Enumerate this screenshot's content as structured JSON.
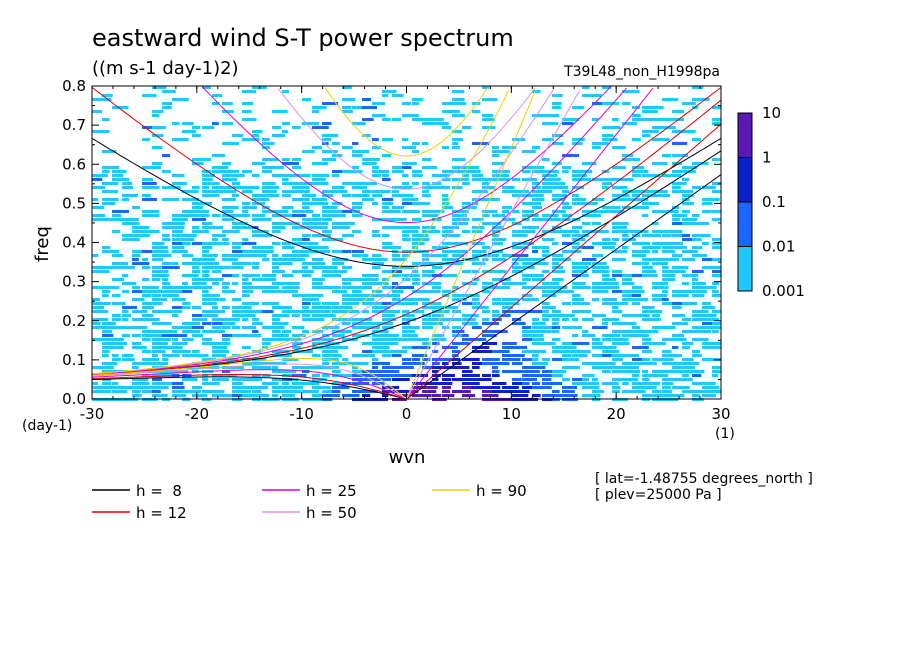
{
  "header": {
    "title": "eastward wind S-T power spectrum",
    "units": "((m s-1 day-1)2)",
    "experiment": "T39L48_non_H1998pa"
  },
  "info": {
    "lat": "[ lat=-1.48755 degrees_north ]",
    "plev": "[ plev=25000 Pa ]"
  },
  "chart_data": {
    "type": "heatmap",
    "title": "eastward wind S-T power spectrum",
    "units_label": "((m s-1 day-1)2)",
    "xlabel": "wvn",
    "ylabel": "freq",
    "x_unit_label": "(1)",
    "y_unit_label": "(day-1)",
    "xlim": [
      -30,
      30
    ],
    "ylim": [
      0,
      0.8
    ],
    "x_ticks": [
      -30,
      -20,
      -10,
      0,
      10,
      20,
      30
    ],
    "x_tick_labels": [
      "-30",
      "-20",
      "-10",
      "0",
      "10",
      "20",
      "30"
    ],
    "y_ticks": [
      0,
      0.1,
      0.2,
      0.3,
      0.4,
      0.5,
      0.6,
      0.7,
      0.8
    ],
    "y_tick_labels": [
      "0.0",
      "0.1",
      "0.2",
      "0.3",
      "0.4",
      "0.5",
      "0.6",
      "0.7",
      "0.8"
    ],
    "colorbar": {
      "levels": [
        "10",
        "1",
        "0.1",
        "0.01",
        "0.001"
      ],
      "colors": [
        "#5a18b4",
        "#0a20c8",
        "#1e64ff",
        "#20c8ff"
      ]
    },
    "dispersion_curves": [
      {
        "label": "h =  8",
        "h": 8,
        "color": "#000000"
      },
      {
        "label": "h = 12",
        "h": 12,
        "color": "#e00000"
      },
      {
        "label": "h = 25",
        "h": 25,
        "color": "#e000c8"
      },
      {
        "label": "h = 50",
        "h": 50,
        "color": "#e090e0"
      },
      {
        "label": "h = 90",
        "h": 90,
        "color": "#f0d000"
      }
    ]
  }
}
